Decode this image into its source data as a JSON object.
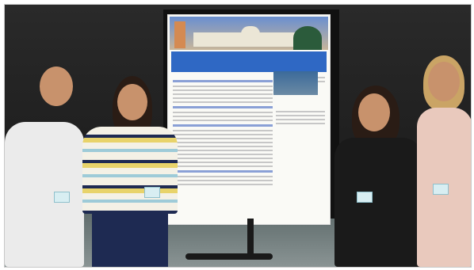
{
  "photo": {
    "poster": {
      "title": "",
      "section_heads": []
    }
  }
}
